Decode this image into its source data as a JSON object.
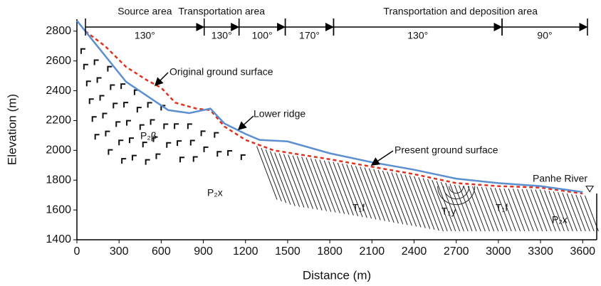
{
  "chart_data": {
    "type": "line",
    "xlabel": "Distance (m)",
    "ylabel": "Elevation (m)",
    "xlim": [
      0,
      3700
    ],
    "ylim": [
      1400,
      2880
    ],
    "xticks": [
      0,
      300,
      600,
      900,
      1200,
      1500,
      1800,
      2100,
      2400,
      2700,
      3000,
      3300,
      3600
    ],
    "yticks": [
      1400,
      1600,
      1800,
      2000,
      2200,
      2400,
      2600,
      2800
    ],
    "series": [
      {
        "name": "Present ground surface",
        "color": "#5b8fd0",
        "style": "solid",
        "x": [
          0,
          350,
          650,
          800,
          950,
          1050,
          1200,
          1300,
          1500,
          1800,
          2100,
          2400,
          2700,
          3000,
          3300,
          3600
        ],
        "values": [
          2870,
          2460,
          2270,
          2250,
          2280,
          2180,
          2110,
          2070,
          2060,
          1980,
          1920,
          1870,
          1810,
          1780,
          1760,
          1720
        ]
      },
      {
        "name": "Original ground surface",
        "color": "#e0301e",
        "style": "dashed",
        "x": [
          60,
          200,
          350,
          500,
          600,
          700,
          850,
          950,
          1050,
          1200,
          1400,
          1800,
          2100,
          2400,
          2700,
          3000,
          3300,
          3600
        ],
        "values": [
          2800,
          2700,
          2560,
          2470,
          2420,
          2320,
          2280,
          2270,
          2160,
          2070,
          2000,
          1940,
          1890,
          1840,
          1780,
          1760,
          1750,
          1710
        ]
      }
    ],
    "zones": [
      {
        "name": "Source area",
        "start": 61,
        "end": 906
      },
      {
        "name": "Transportation area",
        "start": 906,
        "end": 1154
      },
      {
        "name": "Transportation and deposition area",
        "start": 1827,
        "end": 3634
      }
    ],
    "segments": [
      {
        "angle": "130°",
        "start": 61,
        "end": 906
      },
      {
        "angle": "130°",
        "start": 906,
        "end": 1154
      },
      {
        "angle": "100°",
        "start": 1154,
        "end": 1483
      },
      {
        "angle": "170°",
        "start": 1483,
        "end": 1827
      },
      {
        "angle": "130°",
        "start": 1827,
        "end": 3026
      },
      {
        "angle": "90°",
        "start": 3026,
        "end": 3634
      }
    ],
    "annotations": [
      "Original ground surface",
      "Lower ridge",
      "Present ground surface",
      "Panhe River"
    ],
    "rock_labels": [
      "P₂β",
      "P₂x",
      "T₁f",
      "T₁y",
      "T₁f",
      "P₂x"
    ]
  }
}
